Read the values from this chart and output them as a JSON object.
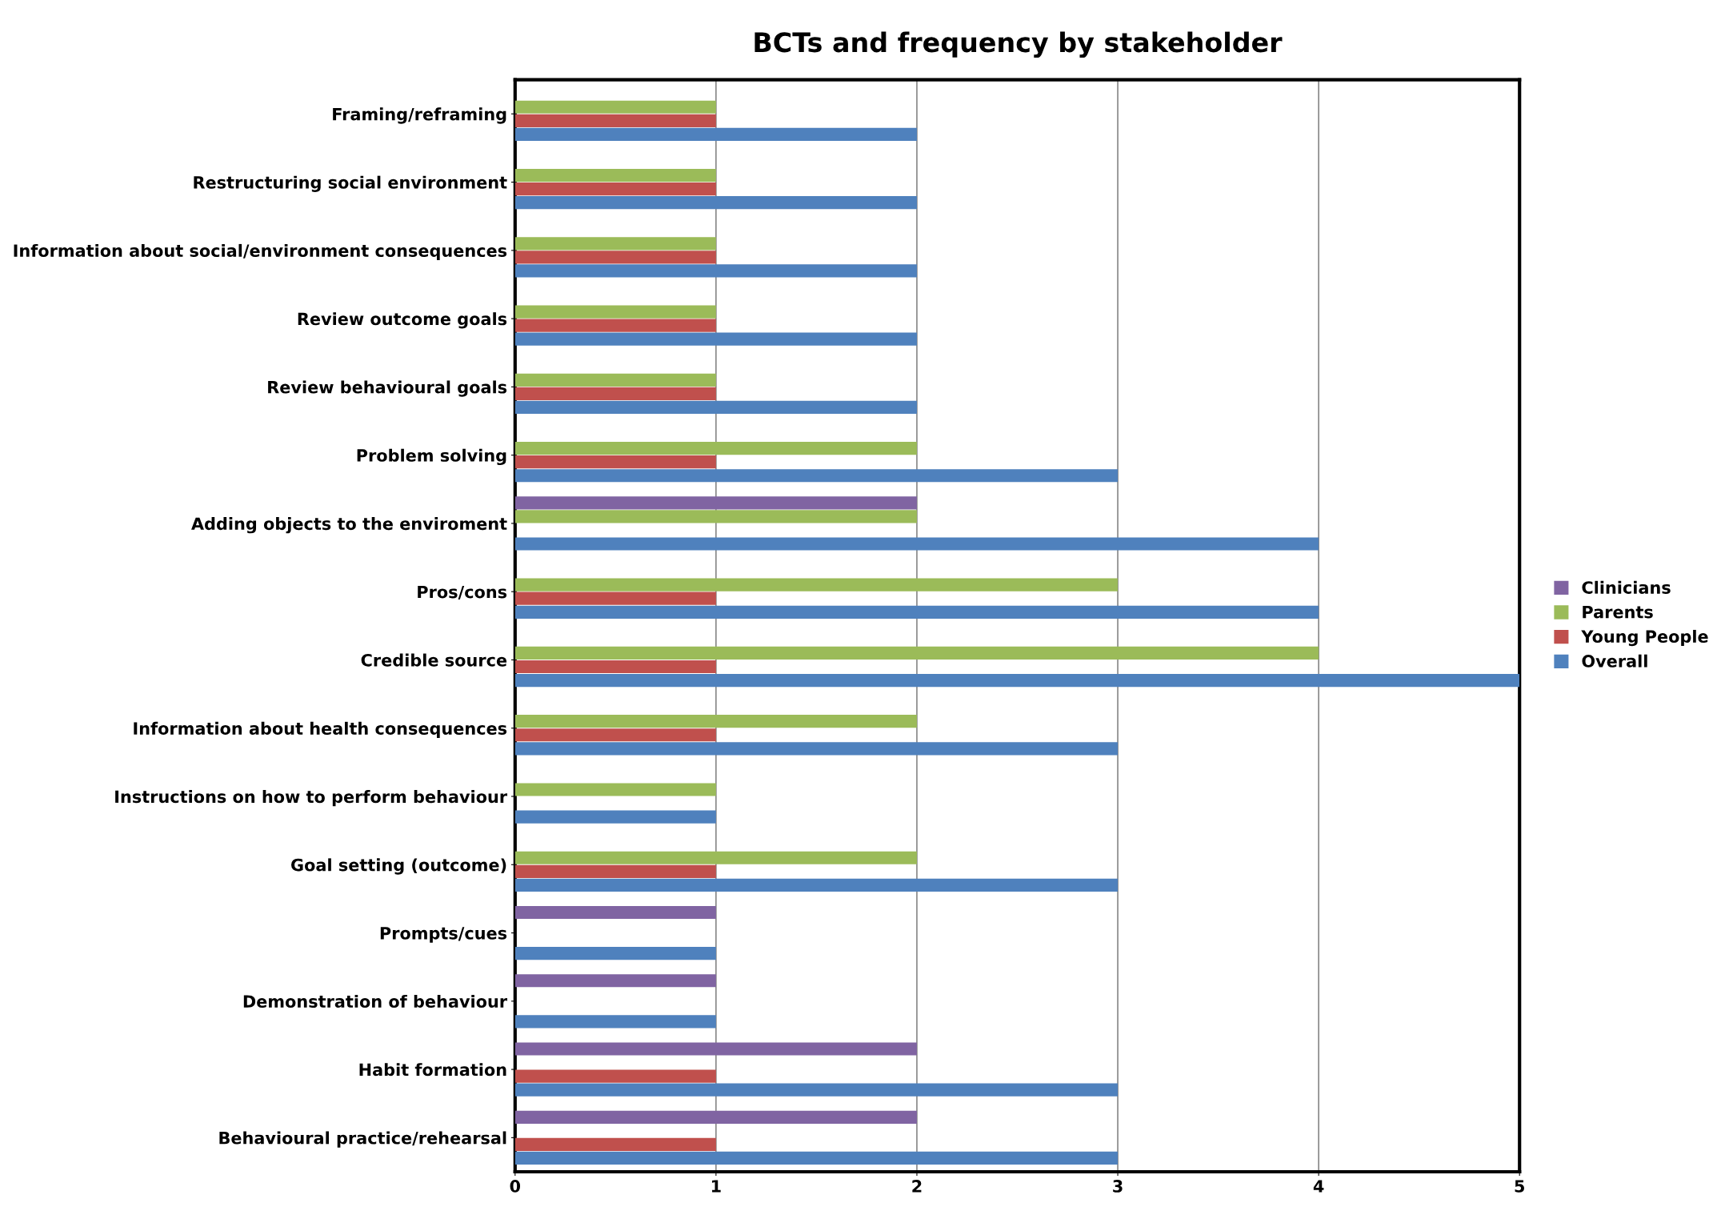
{
  "chart_data": {
    "type": "bar",
    "orientation": "horizontal",
    "title": "BCTs and frequency by stakeholder",
    "categories": [
      "Framing/reframing",
      "Restructuring social environment",
      "Information about social/environment consequences",
      "Review outcome goals",
      "Review behavioural goals",
      "Problem solving",
      "Adding objects to the enviroment",
      "Pros/cons",
      "Credible source",
      "Information about health consequences",
      "Instructions on how to perform behaviour",
      "Goal setting (outcome)",
      "Prompts/cues",
      "Demonstration of behaviour",
      "Habit formation",
      "Behavioural practice/rehearsal"
    ],
    "series": [
      {
        "name": "Overall",
        "color": "#4f81bd",
        "values": [
          2,
          2,
          2,
          2,
          2,
          3,
          4,
          4,
          5,
          3,
          1,
          3,
          1,
          1,
          3,
          3
        ]
      },
      {
        "name": "Young People",
        "color": "#c0504d",
        "values": [
          1,
          1,
          1,
          1,
          1,
          1,
          null,
          1,
          1,
          1,
          null,
          1,
          null,
          null,
          1,
          1
        ]
      },
      {
        "name": "Parents",
        "color": "#9bbb59",
        "values": [
          1,
          1,
          1,
          1,
          1,
          2,
          2,
          3,
          4,
          2,
          1,
          2,
          null,
          null,
          null,
          null
        ]
      },
      {
        "name": "Clinicians",
        "color": "#8064a2",
        "values": [
          null,
          null,
          null,
          null,
          null,
          null,
          2,
          null,
          null,
          null,
          null,
          null,
          1,
          1,
          2,
          2
        ]
      }
    ],
    "xlim": [
      0,
      5
    ],
    "xticks": [
      0,
      1,
      2,
      3,
      4,
      5
    ],
    "grid": "x",
    "legend": "right"
  }
}
